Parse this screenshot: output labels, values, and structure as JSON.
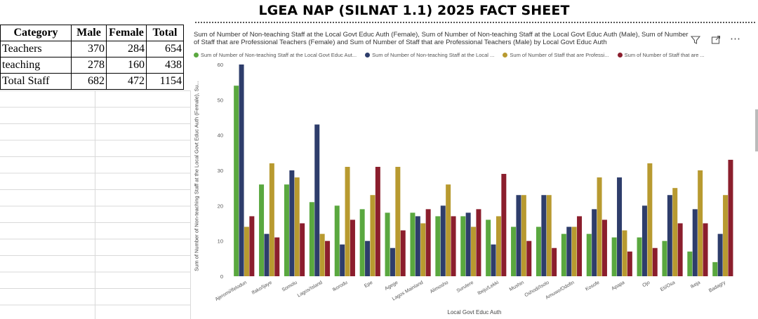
{
  "page_title": "LGEA NAP (SILNAT 1.1) 2025 FACT SHEET",
  "summary_table": {
    "headers": [
      "Category",
      "Male",
      "Female",
      "Total"
    ],
    "rows": [
      {
        "category": "Teachers",
        "male": "370",
        "female": "284",
        "total": "654"
      },
      {
        "category": "teaching",
        "male": "278",
        "female": "160",
        "total": "438"
      },
      {
        "category": "Total Staff",
        "male": "682",
        "female": "472",
        "total": "1154"
      }
    ]
  },
  "chart_panel": {
    "title": "Sum of Number of Non-teaching Staff at the Local Govt Educ Auth (Female), Sum of Number of Non-teaching Staff at the Local Govt Educ Auth (Male), Sum of Number of Staff that are Professional Teachers (Female) and Sum of Number of Staff that are Professional Teachers (Male) by Local Govt Educ Auth",
    "icons": [
      "filter-icon",
      "focus-mode-icon",
      "more-options-icon"
    ]
  },
  "colors": {
    "series": [
      "#5aa83f",
      "#2e3d6b",
      "#b89a30",
      "#8b1e2d"
    ]
  },
  "chart_data": {
    "type": "bar",
    "xlabel": "Local Govt Educ Auth",
    "ylabel": "Sum of Number of Non-teaching Staff at the Local Govt Educ Auth (Female), Su...",
    "ylim": [
      0,
      60
    ],
    "yticks": [
      0,
      10,
      20,
      30,
      40,
      50,
      60
    ],
    "grid": false,
    "legend_position": "top",
    "categories": [
      "Ajeromi/Ifelodun",
      "Ifako/Ijaye",
      "Somolu",
      "Lagos/Island",
      "Ikorodu",
      "Epe",
      "Agege",
      "Lagos Mainland",
      "Alimosho",
      "Surulere",
      "Ibeju/Lekki",
      "Mushin",
      "Oshodi/Isolo",
      "Amuwo/Odofin",
      "Kosofe",
      "Apapa",
      "Ojo",
      "Eti/Osa",
      "Ikeja",
      "Badagry"
    ],
    "series": [
      {
        "name": "Sum of Number of Non-teaching Staff at the Local Govt Educ Aut...",
        "values": [
          54,
          26,
          26,
          21,
          20,
          19,
          18,
          18,
          17,
          17,
          16,
          14,
          14,
          12,
          12,
          11,
          11,
          10,
          7,
          4
        ]
      },
      {
        "name": "Sum of Number of Non-teaching Staff at the Local ...",
        "values": [
          60,
          12,
          30,
          43,
          9,
          10,
          8,
          17,
          20,
          18,
          9,
          23,
          23,
          14,
          19,
          28,
          20,
          23,
          19,
          12
        ]
      },
      {
        "name": "Sum of Number of Staff that are Professi...",
        "values": [
          14,
          32,
          28,
          12,
          31,
          23,
          31,
          15,
          26,
          14,
          17,
          23,
          23,
          14,
          28,
          13,
          32,
          25,
          30,
          23
        ]
      },
      {
        "name": "Sum of Number of Staff that are ...",
        "values": [
          17,
          11,
          15,
          10,
          16,
          31,
          13,
          19,
          17,
          19,
          29,
          10,
          8,
          17,
          16,
          7,
          8,
          15,
          15,
          33
        ]
      }
    ]
  }
}
